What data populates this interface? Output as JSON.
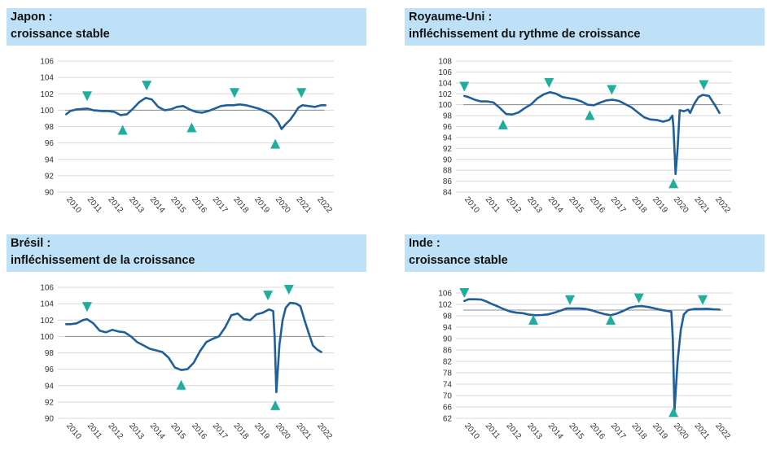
{
  "charts": [
    {
      "title": "Japon :",
      "subtitle": "croissance stable",
      "colors": {
        "line": "#1f5f9b",
        "marker": "#1fae9e"
      },
      "chart_data": {
        "type": "line",
        "x_ticks": [
          "2010",
          "2011",
          "2012",
          "2013",
          "2014",
          "2015",
          "2016",
          "2017",
          "2018",
          "2019",
          "2020",
          "2021",
          "2022"
        ],
        "xlim": [
          2009.6,
          2022.8
        ],
        "ylim": [
          90,
          106
        ],
        "y_ticks": [
          90,
          92,
          94,
          96,
          98,
          100,
          102,
          104,
          106
        ],
        "reference_line": 100,
        "series": [
          {
            "x": [
              2010.0,
              2010.2,
              2010.5,
              2011.0,
              2011.3,
              2011.7,
              2012.0,
              2012.3,
              2012.6,
              2012.9,
              2013.2,
              2013.5,
              2013.8,
              2014.1,
              2014.4,
              2014.7,
              2015.0,
              2015.3,
              2015.6,
              2015.9,
              2016.2,
              2016.5,
              2016.8,
              2017.1,
              2017.4,
              2017.7,
              2018.0,
              2018.3,
              2018.6,
              2018.9,
              2019.2,
              2019.5,
              2019.8,
              2020.0,
              2020.15,
              2020.3,
              2020.5,
              2020.7,
              2020.9,
              2021.1,
              2021.3,
              2021.6,
              2021.9,
              2022.2,
              2022.4
            ],
            "y": [
              99.5,
              99.9,
              100.1,
              100.2,
              100.0,
              99.9,
              99.9,
              99.8,
              99.4,
              99.5,
              100.2,
              101.0,
              101.5,
              101.3,
              100.4,
              100.0,
              100.1,
              100.4,
              100.5,
              100.1,
              99.8,
              99.7,
              99.9,
              100.2,
              100.5,
              100.6,
              100.6,
              100.7,
              100.6,
              100.4,
              100.2,
              99.9,
              99.5,
              99.0,
              98.5,
              97.7,
              98.3,
              98.8,
              99.5,
              100.3,
              100.6,
              100.5,
              100.4,
              100.6,
              100.6
            ]
          }
        ],
        "markers": [
          {
            "x": 2011.0,
            "y": 101.7,
            "dir": "down"
          },
          {
            "x": 2012.7,
            "y": 97.6,
            "dir": "up"
          },
          {
            "x": 2013.85,
            "y": 103.0,
            "dir": "down"
          },
          {
            "x": 2016.0,
            "y": 97.9,
            "dir": "up"
          },
          {
            "x": 2018.05,
            "y": 102.1,
            "dir": "down"
          },
          {
            "x": 2020.0,
            "y": 95.9,
            "dir": "up"
          },
          {
            "x": 2021.25,
            "y": 102.1,
            "dir": "down"
          }
        ]
      }
    },
    {
      "title": "Royaume-Uni :",
      "subtitle": "infléchissement du rythme de croissance",
      "colors": {
        "line": "#1f5f9b",
        "marker": "#1fae9e"
      },
      "chart_data": {
        "type": "line",
        "x_ticks": [
          "2010",
          "2011",
          "2012",
          "2013",
          "2014",
          "2015",
          "2016",
          "2017",
          "2018",
          "2019",
          "2020",
          "2021",
          "2022"
        ],
        "xlim": [
          2009.6,
          2022.8
        ],
        "ylim": [
          84,
          108
        ],
        "y_ticks": [
          84,
          86,
          88,
          90,
          92,
          94,
          96,
          98,
          100,
          102,
          104,
          106,
          108
        ],
        "reference_line": 100,
        "series": [
          {
            "x": [
              2010.0,
              2010.2,
              2010.5,
              2010.8,
              2011.1,
              2011.4,
              2011.7,
              2012.0,
              2012.3,
              2012.6,
              2012.9,
              2013.2,
              2013.5,
              2013.8,
              2014.1,
              2014.4,
              2014.7,
              2015.0,
              2015.3,
              2015.6,
              2015.9,
              2016.2,
              2016.5,
              2016.8,
              2017.1,
              2017.4,
              2017.7,
              2018.0,
              2018.3,
              2018.6,
              2018.9,
              2019.2,
              2019.5,
              2019.8,
              2019.95,
              2020.0,
              2020.1,
              2020.2,
              2020.3,
              2020.5,
              2020.7,
              2020.8,
              2021.0,
              2021.2,
              2021.4,
              2021.7,
              2022.0,
              2022.2
            ],
            "y": [
              101.6,
              101.4,
              100.9,
              100.6,
              100.6,
              100.4,
              99.4,
              98.3,
              98.2,
              98.6,
              99.4,
              100.1,
              101.2,
              101.9,
              102.3,
              102.0,
              101.4,
              101.2,
              101.0,
              100.6,
              100.0,
              99.9,
              100.4,
              100.8,
              100.9,
              100.7,
              100.1,
              99.5,
              98.6,
              97.7,
              97.3,
              97.2,
              96.9,
              97.2,
              98.0,
              96.0,
              87.3,
              92.0,
              99.0,
              98.8,
              99.1,
              98.5,
              100.2,
              101.4,
              101.8,
              101.6,
              99.8,
              98.5
            ]
          }
        ],
        "markers": [
          {
            "x": 2010.0,
            "y": 103.3,
            "dir": "down"
          },
          {
            "x": 2011.85,
            "y": 96.4,
            "dir": "up"
          },
          {
            "x": 2014.05,
            "y": 104.0,
            "dir": "down"
          },
          {
            "x": 2016.0,
            "y": 98.1,
            "dir": "up"
          },
          {
            "x": 2017.05,
            "y": 102.7,
            "dir": "down"
          },
          {
            "x": 2020.0,
            "y": 85.6,
            "dir": "up"
          },
          {
            "x": 2021.45,
            "y": 103.6,
            "dir": "down"
          }
        ]
      }
    },
    {
      "title": "Brésil :",
      "subtitle": "infléchissement de la croissance",
      "colors": {
        "line": "#1f5f9b",
        "marker": "#1fae9e"
      },
      "chart_data": {
        "type": "line",
        "x_ticks": [
          "2010",
          "2011",
          "2012",
          "2013",
          "2014",
          "2015",
          "2016",
          "2017",
          "2018",
          "2019",
          "2020",
          "2021",
          "2022"
        ],
        "xlim": [
          2009.6,
          2022.8
        ],
        "ylim": [
          90,
          106
        ],
        "y_ticks": [
          90,
          92,
          94,
          96,
          98,
          100,
          102,
          104,
          106
        ],
        "reference_line": 100,
        "series": [
          {
            "x": [
              2010.0,
              2010.2,
              2010.5,
              2010.8,
              2011.0,
              2011.3,
              2011.6,
              2011.9,
              2012.2,
              2012.5,
              2012.8,
              2013.1,
              2013.4,
              2013.7,
              2014.0,
              2014.3,
              2014.6,
              2014.9,
              2015.2,
              2015.5,
              2015.8,
              2016.1,
              2016.4,
              2016.7,
              2017.0,
              2017.3,
              2017.6,
              2017.9,
              2018.2,
              2018.5,
              2018.8,
              2019.1,
              2019.4,
              2019.7,
              2019.9,
              2019.97,
              2020.05,
              2020.2,
              2020.35,
              2020.5,
              2020.7,
              2021.0,
              2021.2,
              2021.4,
              2021.6,
              2021.8,
              2022.0,
              2022.2
            ],
            "y": [
              101.5,
              101.5,
              101.6,
              102.0,
              102.1,
              101.6,
              100.7,
              100.5,
              100.8,
              100.6,
              100.5,
              100.0,
              99.3,
              98.9,
              98.5,
              98.3,
              98.1,
              97.4,
              96.2,
              95.9,
              96.0,
              96.8,
              98.2,
              99.3,
              99.7,
              100.0,
              101.1,
              102.6,
              102.8,
              102.1,
              102.0,
              102.7,
              102.9,
              103.3,
              103.1,
              100.0,
              93.2,
              99.0,
              102.0,
              103.5,
              104.1,
              104.0,
              103.7,
              102.0,
              100.4,
              98.9,
              98.4,
              98.1
            ]
          }
        ],
        "markers": [
          {
            "x": 2011.0,
            "y": 103.6,
            "dir": "down"
          },
          {
            "x": 2015.5,
            "y": 94.1,
            "dir": "up"
          },
          {
            "x": 2019.65,
            "y": 105.0,
            "dir": "down"
          },
          {
            "x": 2020.0,
            "y": 91.6,
            "dir": "up"
          },
          {
            "x": 2020.65,
            "y": 105.7,
            "dir": "down"
          }
        ]
      }
    },
    {
      "title": "Inde :",
      "subtitle": "croissance stable",
      "colors": {
        "line": "#1f5f9b",
        "marker": "#1fae9e"
      },
      "chart_data": {
        "type": "line",
        "x_ticks": [
          "2010",
          "2011",
          "2012",
          "2013",
          "2014",
          "2015",
          "2016",
          "2017",
          "2018",
          "2019",
          "2020",
          "2021",
          "2022"
        ],
        "xlim": [
          2009.6,
          2022.8
        ],
        "ylim": [
          62,
          108
        ],
        "y_ticks": [
          62,
          66,
          70,
          74,
          78,
          82,
          86,
          90,
          94,
          98,
          102,
          106
        ],
        "reference_line": 100,
        "series": [
          {
            "x": [
              2010.0,
              2010.2,
              2010.5,
              2010.8,
              2011.0,
              2011.3,
              2011.6,
              2011.9,
              2012.2,
              2012.5,
              2012.8,
              2013.1,
              2013.4,
              2013.7,
              2014.0,
              2014.3,
              2014.6,
              2014.9,
              2015.2,
              2015.5,
              2015.8,
              2016.1,
              2016.4,
              2016.7,
              2017.0,
              2017.3,
              2017.6,
              2017.9,
              2018.2,
              2018.5,
              2018.8,
              2019.1,
              2019.4,
              2019.7,
              2019.9,
              2019.97,
              2020.05,
              2020.2,
              2020.35,
              2020.5,
              2020.7,
              2021.0,
              2021.3,
              2021.6,
              2021.9,
              2022.2
            ],
            "y": [
              103.2,
              103.8,
              103.8,
              103.7,
              103.2,
              102.2,
              101.3,
              100.3,
              99.5,
              99.1,
              98.9,
              98.4,
              98.2,
              98.3,
              98.5,
              99.1,
              99.8,
              100.6,
              100.6,
              100.6,
              100.4,
              99.9,
              99.2,
              98.6,
              98.2,
              98.8,
              99.7,
              100.8,
              101.3,
              101.4,
              101.1,
              100.6,
              100.1,
              99.7,
              99.5,
              90.0,
              64.7,
              82.0,
              93.0,
              98.5,
              100.0,
              100.4,
              100.4,
              100.5,
              100.3,
              100.2
            ]
          }
        ],
        "markers": [
          {
            "x": 2010.0,
            "y": 106.0,
            "dir": "down"
          },
          {
            "x": 2013.3,
            "y": 96.6,
            "dir": "up"
          },
          {
            "x": 2015.05,
            "y": 103.5,
            "dir": "down"
          },
          {
            "x": 2017.0,
            "y": 96.6,
            "dir": "up"
          },
          {
            "x": 2018.35,
            "y": 104.1,
            "dir": "down"
          },
          {
            "x": 2020.0,
            "y": 64.2,
            "dir": "up"
          },
          {
            "x": 2021.4,
            "y": 103.5,
            "dir": "down"
          }
        ]
      }
    }
  ]
}
